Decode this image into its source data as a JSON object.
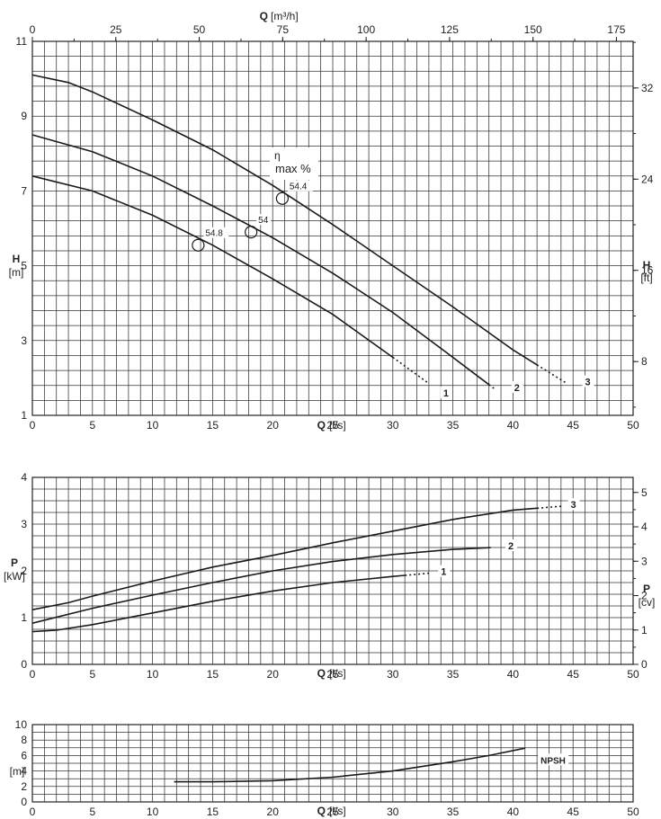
{
  "chart_data": [
    {
      "type": "line",
      "panel": "head",
      "xlabel": "Q",
      "xunit": "[l/s]",
      "x2label": "Q",
      "x2unit": "[m³/h]",
      "ylabel": "H",
      "yunit": "[m]",
      "y2label": "H",
      "y2unit": "[ft]",
      "xlim": [
        0,
        50
      ],
      "ylim": [
        1,
        11
      ],
      "x_ticks": [
        0,
        5,
        10,
        15,
        20,
        25,
        30,
        35,
        40,
        45,
        50
      ],
      "x_tick_labels": [
        "0",
        "5",
        "10",
        "15",
        "20",
        "25",
        "30",
        "35",
        "40",
        "45",
        "50"
      ],
      "y_ticks": [
        1,
        3,
        5,
        7,
        9,
        11
      ],
      "y_tick_labels": [
        "1",
        "3",
        "5",
        "7",
        "9",
        "11"
      ],
      "x2_ticks": [
        0,
        25,
        50,
        75,
        100,
        125,
        150,
        175
      ],
      "x2_tick_labels": [
        "0",
        "25",
        "50",
        "75",
        "100",
        "125",
        "150",
        "175"
      ],
      "y2_ticks": [
        8,
        16,
        24,
        32
      ],
      "y2_tick_labels": [
        "8",
        "16",
        "24",
        "32"
      ],
      "annotation": {
        "symbol": "η",
        "text": "max %"
      },
      "series": [
        {
          "name": "1",
          "points": [
            [
              0,
              7.4
            ],
            [
              5,
              7.0
            ],
            [
              10,
              6.35
            ],
            [
              15,
              5.55
            ],
            [
              20,
              4.65
            ],
            [
              25,
              3.7
            ],
            [
              30,
              2.55
            ],
            [
              33,
              1.85
            ]
          ],
          "dotted_from": 30,
          "label_at": [
            34.2,
            1.55
          ]
        },
        {
          "name": "2",
          "points": [
            [
              0,
              8.5
            ],
            [
              5,
              8.05
            ],
            [
              10,
              7.4
            ],
            [
              15,
              6.6
            ],
            [
              20,
              5.75
            ],
            [
              25,
              4.8
            ],
            [
              30,
              3.75
            ],
            [
              35,
              2.55
            ],
            [
              38.5,
              1.7
            ]
          ],
          "dotted_from": 38,
          "label_at": [
            40.1,
            1.7
          ]
        },
        {
          "name": "3",
          "points": [
            [
              0,
              10.1
            ],
            [
              3,
              9.9
            ],
            [
              5,
              9.65
            ],
            [
              10,
              8.9
            ],
            [
              15,
              8.1
            ],
            [
              20,
              7.15
            ],
            [
              25,
              6.1
            ],
            [
              30,
              5.0
            ],
            [
              35,
              3.9
            ],
            [
              40,
              2.75
            ],
            [
              44.5,
              1.85
            ]
          ],
          "dotted_from": 42,
          "label_at": [
            46.0,
            1.85
          ]
        }
      ],
      "efficiency_points": [
        {
          "x": 13.8,
          "y": 5.55,
          "label": "54.8"
        },
        {
          "x": 18.2,
          "y": 5.9,
          "label": "54"
        },
        {
          "x": 20.8,
          "y": 6.8,
          "label": "54.4"
        }
      ]
    },
    {
      "type": "line",
      "panel": "power",
      "xlabel": "Q",
      "xunit": "[l/s]",
      "ylabel": "P",
      "yunit": "[kW]",
      "y2label": "P",
      "y2unit": "[cv]",
      "xlim": [
        0,
        50
      ],
      "ylim": [
        0,
        4
      ],
      "x_ticks": [
        0,
        5,
        10,
        15,
        20,
        25,
        30,
        35,
        40,
        45,
        50
      ],
      "x_tick_labels": [
        "0",
        "5",
        "10",
        "15",
        "20",
        "25",
        "30",
        "35",
        "40",
        "45",
        "50"
      ],
      "y_ticks": [
        0,
        1,
        2,
        3,
        4
      ],
      "y_tick_labels": [
        "0",
        "1",
        "2",
        "3",
        "4"
      ],
      "y2_ticks": [
        0,
        1,
        2,
        3,
        4,
        5
      ],
      "y2_tick_labels": [
        "0",
        "1",
        "2",
        "3",
        "4",
        "5"
      ],
      "series": [
        {
          "name": "1",
          "points": [
            [
              0,
              0.7
            ],
            [
              2,
              0.73
            ],
            [
              5,
              0.85
            ],
            [
              10,
              1.1
            ],
            [
              15,
              1.35
            ],
            [
              20,
              1.57
            ],
            [
              25,
              1.75
            ],
            [
              30,
              1.88
            ],
            [
              33,
              1.95
            ]
          ],
          "dotted_from": 31,
          "label_at": [
            34.0,
            1.95
          ]
        },
        {
          "name": "2",
          "points": [
            [
              0,
              0.88
            ],
            [
              5,
              1.2
            ],
            [
              10,
              1.48
            ],
            [
              15,
              1.75
            ],
            [
              20,
              2.0
            ],
            [
              25,
              2.2
            ],
            [
              30,
              2.35
            ],
            [
              35,
              2.46
            ],
            [
              38.3,
              2.5
            ]
          ],
          "dotted_from": 38,
          "label_at": [
            39.6,
            2.5
          ]
        },
        {
          "name": "3",
          "points": [
            [
              0,
              1.17
            ],
            [
              3,
              1.32
            ],
            [
              5,
              1.46
            ],
            [
              10,
              1.78
            ],
            [
              15,
              2.08
            ],
            [
              20,
              2.33
            ],
            [
              25,
              2.6
            ],
            [
              30,
              2.85
            ],
            [
              35,
              3.1
            ],
            [
              40,
              3.3
            ],
            [
              44,
              3.38
            ]
          ],
          "dotted_from": 42,
          "label_at": [
            44.8,
            3.38
          ]
        }
      ]
    },
    {
      "type": "line",
      "panel": "npsh",
      "xlabel": "Q",
      "xunit": "[l/s]",
      "yunit": "[m]",
      "xlim": [
        0,
        50
      ],
      "ylim": [
        0,
        10
      ],
      "x_ticks": [
        0,
        5,
        10,
        15,
        20,
        25,
        30,
        35,
        40,
        45,
        50
      ],
      "x_tick_labels": [
        "0",
        "5",
        "10",
        "15",
        "20",
        "25",
        "30",
        "35",
        "40",
        "45",
        "50"
      ],
      "y_ticks": [
        0,
        2,
        4,
        6,
        8,
        10
      ],
      "y_tick_labels": [
        "0",
        "2",
        "4",
        "6",
        "8",
        "10"
      ],
      "series": [
        {
          "name": "NPSH",
          "points": [
            [
              11.8,
              2.6
            ],
            [
              15,
              2.6
            ],
            [
              20,
              2.75
            ],
            [
              25,
              3.2
            ],
            [
              30,
              4.0
            ],
            [
              35,
              5.2
            ],
            [
              38,
              6.0
            ],
            [
              41,
              6.95
            ]
          ],
          "label_at": [
            42.3,
            5.2
          ]
        }
      ]
    }
  ]
}
